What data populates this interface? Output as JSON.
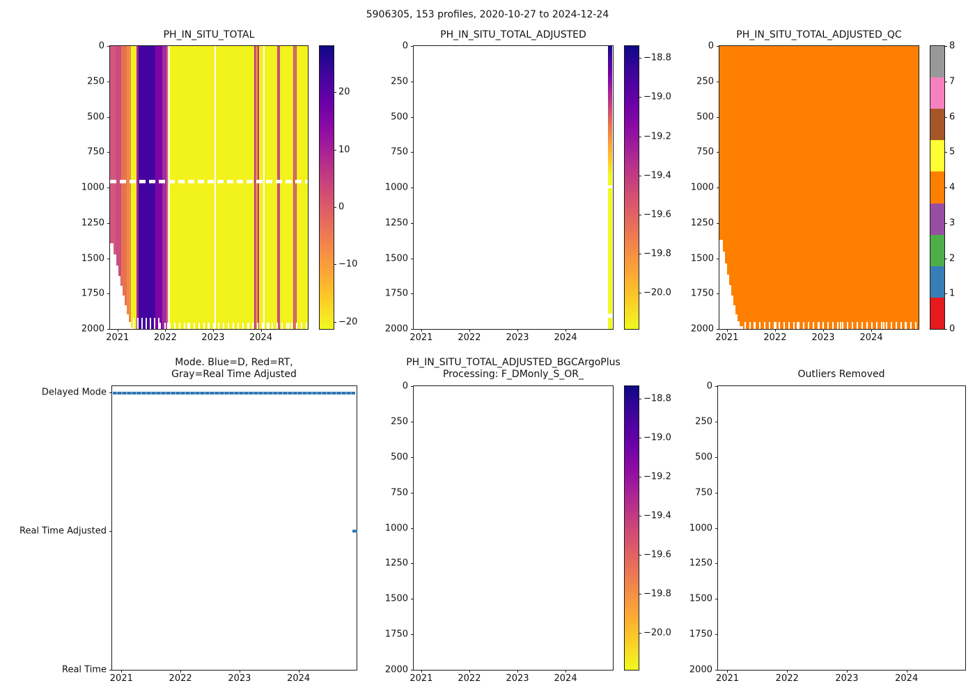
{
  "suptitle": "5906305, 153 profiles, 2020-10-27 to 2024-12-24",
  "x_year_ticks": [
    "2021",
    "2022",
    "2023",
    "2024"
  ],
  "depth_ticks": [
    "0",
    "250",
    "500",
    "750",
    "1000",
    "1250",
    "1500",
    "1750",
    "2000"
  ],
  "panels": {
    "p1": {
      "title": "PH_IN_SITU_TOTAL"
    },
    "p2": {
      "title": "PH_IN_SITU_TOTAL_ADJUSTED"
    },
    "p3": {
      "title": "PH_IN_SITU_TOTAL_ADJUSTED_QC"
    },
    "p4": {
      "title_line1": "Mode. Blue=D, Red=RT,",
      "title_line2": "Gray=Real Time Adjusted",
      "categories": [
        "Delayed Mode",
        "Real Time Adjusted",
        "Real Time"
      ]
    },
    "p5": {
      "title_line1": "PH_IN_SITU_TOTAL_ADJUSTED_BGCArgoPlus",
      "title_line2": "Processing: F_DMonly_S_OR_"
    },
    "p6": {
      "title": "Outliers Removed"
    }
  },
  "colorbars": {
    "cb1": {
      "ticks": [
        "20",
        "10",
        "0",
        "−10",
        "−20"
      ]
    },
    "cb2": {
      "ticks": [
        "−18.8",
        "−19.0",
        "−19.2",
        "−19.4",
        "−19.6",
        "−19.8",
        "−20.0"
      ]
    },
    "cb3": {
      "ticks": [
        "8",
        "7",
        "6",
        "5",
        "4",
        "3",
        "2",
        "1",
        "0"
      ],
      "colors_bottom_to_top": [
        "#e41a1c",
        "#377eb8",
        "#4daf4a",
        "#984ea3",
        "#ff7f00",
        "#ffff33",
        "#a65628",
        "#f781bf",
        "#999999"
      ]
    },
    "cb5": {
      "ticks": [
        "−18.8",
        "−19.0",
        "−19.2",
        "−19.4",
        "−19.6",
        "−19.8",
        "−20.0"
      ]
    }
  },
  "colors": {
    "qc_fill_orange": "#ff7f00",
    "mode_line_blue": "#1f77b4",
    "heat_yellow": "#f0f921",
    "plasma_dark": "#0d0887"
  },
  "chart_data": [
    {
      "type": "heatmap",
      "title": "PH_IN_SITU_TOTAL",
      "x": {
        "ticks": [
          2021,
          2022,
          2023,
          2024
        ],
        "data_range": [
          "2020-10-27",
          "2024-12-24"
        ]
      },
      "y": {
        "ticks": [
          0,
          250,
          500,
          750,
          1000,
          1250,
          1500,
          1750,
          2000
        ],
        "range": [
          0,
          2000
        ]
      },
      "colorbar": {
        "ticks": [
          20,
          10,
          0,
          -10,
          -20
        ],
        "range_estimate": [
          -20,
          28
        ],
        "colormap": "plasma (dark = high value)"
      },
      "content_summary": "Most profiles from 2022 onward are approximately -20 (yellow). Profiles from late 2020 to early 2021 span roughly 0 to 10 (rose/salmon). Mid-to-late 2021 profiles span roughly 15 to 28 (indigo/purple). A few narrow profile stripes near late 2023 and during 2024 return to roughly -5 to 10 (magenta/orange). A dashed white data gap runs across all profiles near 1000 dbar. The earliest profiles only reach about 1400-2000 dbar, producing a white staircase at the lower-left; later profiles stop slightly above 2000 dbar (white notches along the bottom edge)."
    },
    {
      "type": "heatmap",
      "title": "PH_IN_SITU_TOTAL_ADJUSTED",
      "x": {
        "ticks": [
          2021,
          2022,
          2023,
          2024
        ],
        "data_range": [
          "2020-10-27",
          "2024-12-24"
        ]
      },
      "y": {
        "ticks": [
          0,
          250,
          500,
          750,
          1000,
          1250,
          1500,
          1750,
          2000
        ],
        "range": [
          0,
          2000
        ]
      },
      "colorbar": {
        "ticks": [
          -18.8,
          -19.0,
          -19.2,
          -19.4,
          -19.6,
          -19.8,
          -20.0
        ],
        "range_estimate": [
          -20.2,
          -18.7
        ],
        "colormap": "plasma (dark = high value)"
      },
      "content_summary": "Adjusted values exist only for the final profiles (about December 2024), shown as a thin stripe at the right edge ranging from about -18.8 near the surface to about -20.0 below roughly 900 dbar, with a small gap near 1000 dbar. All other profiles are empty (white)."
    },
    {
      "type": "heatmap",
      "title": "PH_IN_SITU_TOTAL_ADJUSTED_QC",
      "discrete": true,
      "x": {
        "ticks": [
          2021,
          2022,
          2023,
          2024
        ],
        "data_range": [
          "2020-10-27",
          "2024-12-24"
        ]
      },
      "y": {
        "ticks": [
          0,
          250,
          500,
          750,
          1000,
          1250,
          1500,
          1750,
          2000
        ],
        "range": [
          0,
          2000
        ]
      },
      "colorbar": {
        "ticks": [
          0,
          1,
          2,
          3,
          4,
          5,
          6,
          7,
          8
        ],
        "palette": "Set1 (9 discrete QC flag colors)"
      },
      "content_summary": "Every plotted point carries QC flag 4 (orange). Same lower-left white staircase (earliest profiles shallower than 2000 dbar) and white notches along the bottom edge."
    },
    {
      "type": "scatter",
      "title": "Mode. Blue=D, Red=RT, Gray=Real Time Adjusted",
      "categories": [
        "Delayed Mode",
        "Real Time Adjusted",
        "Real Time"
      ],
      "x": {
        "ticks": [
          2021,
          2022,
          2023,
          2024
        ],
        "data_range": [
          "2020-10-27",
          "2024-12-24"
        ]
      },
      "content_summary": "A continuous row of blue markers at the Delayed Mode level spans the whole record (all 153 profiles delayed-mode), plus one short blue mark at the Real Time Adjusted level at the very end (late December 2024). No points at Real Time."
    },
    {
      "type": "heatmap",
      "title": "PH_IN_SITU_TOTAL_ADJUSTED_BGCArgoPlus Processing: F_DMonly_S_OR_",
      "x": {
        "ticks": [
          2021,
          2022,
          2023,
          2024
        ]
      },
      "y": {
        "ticks": [
          0,
          250,
          500,
          750,
          1000,
          1250,
          1500,
          1750,
          2000
        ],
        "range": [
          0,
          2000
        ]
      },
      "colorbar": {
        "ticks": [
          -18.8,
          -19.0,
          -19.2,
          -19.4,
          -19.6,
          -19.8,
          -20.0
        ],
        "colormap": "plasma (dark = high value)"
      },
      "content_summary": "Axes and colorbar drawn but no data plotted (empty white panel)."
    },
    {
      "type": "empty",
      "title": "Outliers Removed",
      "x": {
        "ticks": [
          2021,
          2022,
          2023,
          2024
        ]
      },
      "y": {
        "ticks": [
          0,
          250,
          500,
          750,
          1000,
          1250,
          1500,
          1750,
          2000
        ],
        "range": [
          0,
          2000
        ]
      },
      "content_summary": "Empty panel, no data plotted."
    }
  ]
}
